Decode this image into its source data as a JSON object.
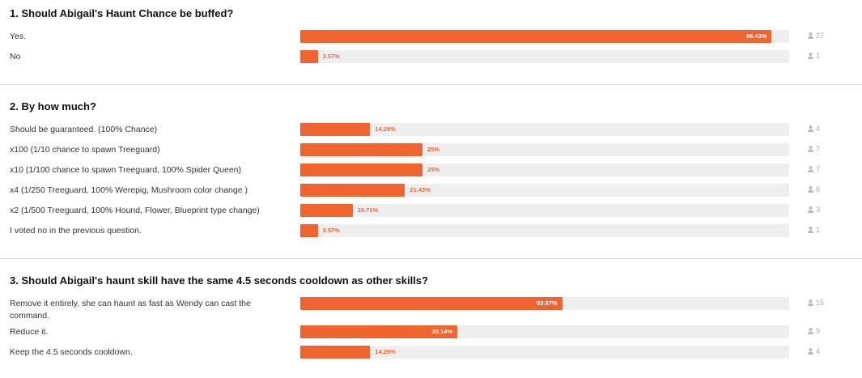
{
  "polls": [
    {
      "question": "1. Should Abigail's Haunt Chance be buffed?",
      "options": [
        {
          "text": "Yes.",
          "percent": 96.43,
          "percent_label": "96.43%",
          "votes": 27
        },
        {
          "text": "No",
          "percent": 3.57,
          "percent_label": "3.57%",
          "votes": 1
        }
      ]
    },
    {
      "question": "2. By how much?",
      "options": [
        {
          "text": "Should be guaranteed. (100% Chance)",
          "percent": 14.29,
          "percent_label": "14.29%",
          "votes": 4
        },
        {
          "text": "x100 (1/10 chance to spawn Treeguard)",
          "percent": 25,
          "percent_label": "25%",
          "votes": 7
        },
        {
          "text": "x10 (1/100 chance to spawn Treeguard, 100% Spider Queen)",
          "percent": 25,
          "percent_label": "25%",
          "votes": 7
        },
        {
          "text": "x4 (1/250 Treeguard, 100% Werepig, Mushroom color change )",
          "percent": 21.43,
          "percent_label": "21.43%",
          "votes": 6
        },
        {
          "text": "x2 (1/500 Treeguard, 100% Hound, Flower, Blueprint type change)",
          "percent": 10.71,
          "percent_label": "10.71%",
          "votes": 3
        },
        {
          "text": "I voted no in the previous question.",
          "percent": 3.57,
          "percent_label": "3.57%",
          "votes": 1
        }
      ]
    },
    {
      "question": "3. Should Abigail's haunt skill have the same 4.5 seconds cooldown as other skills?",
      "options": [
        {
          "text": "Remove it entirely, she can haunt as fast as Wendy can cast the command.",
          "percent": 53.57,
          "percent_label": "53.57%",
          "votes": 15
        },
        {
          "text": "Reduce it.",
          "percent": 32.14,
          "percent_label": "32.14%",
          "votes": 9
        },
        {
          "text": "Keep the 4.5 seconds cooldown.",
          "percent": 14.29,
          "percent_label": "14.29%",
          "votes": 4
        }
      ]
    }
  ]
}
